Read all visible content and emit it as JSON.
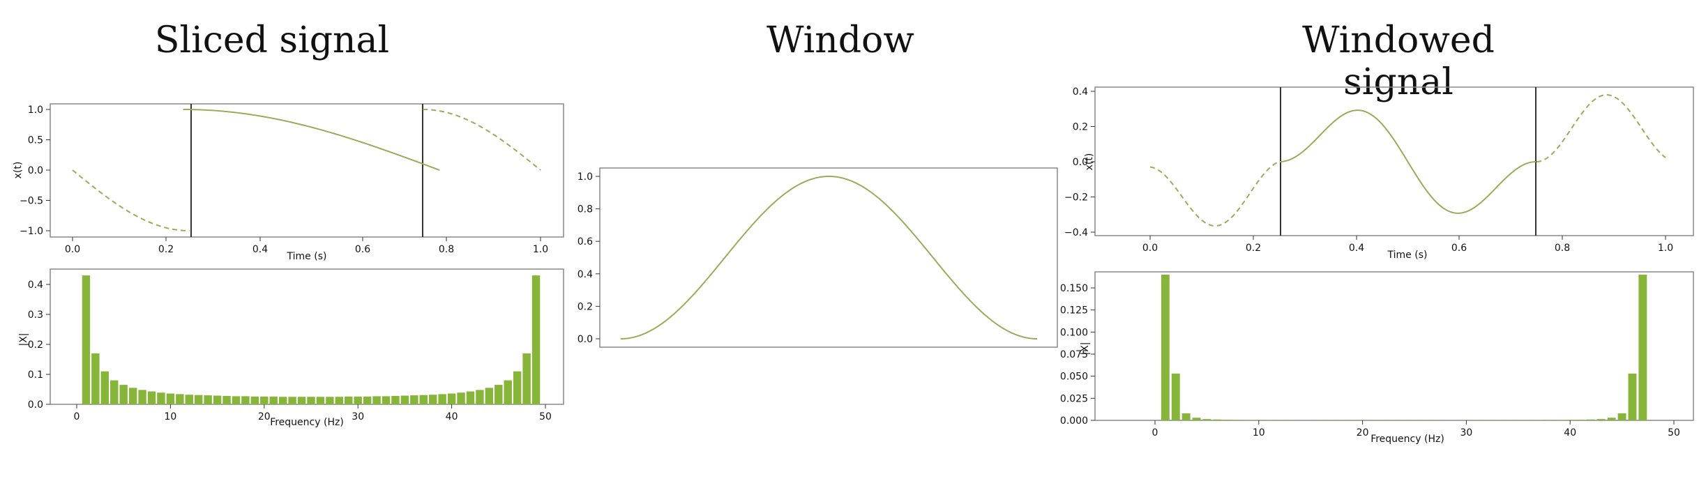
{
  "titles": {
    "sliced": "Sliced signal",
    "window": "Window",
    "windowed": "Windowed signal"
  },
  "colors": {
    "line": "#9aab5a",
    "bar": "#86b53a",
    "slice_line": "#333333",
    "frame": "#888888"
  },
  "chart_data": [
    {
      "id": "sliced-time",
      "type": "line",
      "xlabel": "Time (s)",
      "ylabel": "x(t)",
      "segments": [
        {
          "name": "left",
          "x": [
            0.0,
            0.25
          ],
          "ylim": [
            -1.08,
            1.08
          ],
          "xlim": [
            -0.05,
            0.25
          ],
          "xticks": [
            0.0,
            0.2
          ],
          "xticklabels": [
            "0.0",
            "0.2"
          ],
          "func": "cos_left",
          "style": "dashed"
        },
        {
          "name": "middle",
          "x": [
            0.25,
            0.75
          ],
          "xticks": [
            0.4,
            0.6
          ],
          "xticklabels": [
            "0.4",
            "0.6"
          ],
          "func": "cos",
          "style": "solid"
        },
        {
          "name": "right",
          "x": [
            0.75,
            1.0
          ],
          "xticks": [
            0.8,
            1.0
          ],
          "xticklabels": [
            "0.8",
            "1.0"
          ],
          "func": "cos_right",
          "style": "dashed"
        }
      ],
      "yticks": [
        1.0,
        0.5,
        0.0,
        -0.5,
        -1.0
      ],
      "yticklabels": [
        "1.0",
        "0.5",
        "0.0",
        "−0.5",
        "−1.0"
      ]
    },
    {
      "id": "sliced-spectrum",
      "type": "bar",
      "xlabel": "Frequency (Hz)",
      "ylabel": "|X|",
      "x": [
        1,
        2,
        3,
        4,
        5,
        6,
        7,
        8,
        9,
        10,
        11,
        12,
        13,
        14,
        15,
        16,
        17,
        18,
        19,
        20,
        21,
        22,
        23,
        24,
        25,
        26,
        27,
        28,
        29,
        30,
        31,
        32,
        33,
        34,
        35,
        36,
        37,
        38,
        39,
        40,
        41,
        42,
        43,
        44,
        45,
        46,
        47,
        48,
        49
      ],
      "values": [
        0.43,
        0.17,
        0.11,
        0.08,
        0.065,
        0.055,
        0.048,
        0.043,
        0.039,
        0.036,
        0.034,
        0.032,
        0.031,
        0.03,
        0.029,
        0.028,
        0.027,
        0.027,
        0.026,
        0.026,
        0.026,
        0.025,
        0.025,
        0.025,
        0.025,
        0.025,
        0.025,
        0.025,
        0.026,
        0.026,
        0.026,
        0.027,
        0.027,
        0.028,
        0.029,
        0.03,
        0.031,
        0.032,
        0.034,
        0.036,
        0.039,
        0.043,
        0.048,
        0.055,
        0.065,
        0.08,
        0.11,
        0.17,
        0.43
      ],
      "xticks": [
        0,
        10,
        20,
        30,
        40,
        50
      ],
      "yticks": [
        0.4,
        0.3,
        0.2,
        0.1,
        0.0
      ],
      "yticklabels": [
        "0.4",
        "0.3",
        "0.2",
        "0.1",
        "0.0"
      ],
      "xlim": [
        -3,
        51
      ],
      "ylim": [
        0,
        0.45
      ]
    },
    {
      "id": "window",
      "type": "line",
      "xlabel": "",
      "ylabel": "",
      "yticks": [
        1.0,
        0.8,
        0.6,
        0.4,
        0.2,
        0.0
      ],
      "yticklabels": [
        "1.0",
        "0.8",
        "0.6",
        "0.4",
        "0.2",
        "0.0"
      ],
      "ylim": [
        -0.05,
        1.05
      ],
      "func": "hann"
    },
    {
      "id": "windowed-time",
      "type": "line",
      "xlabel": "Time (s)",
      "ylabel": "x(t)",
      "yticks": [
        0.4,
        0.2,
        0.0,
        -0.2,
        -0.4
      ],
      "yticklabels": [
        "0.4",
        "0.2",
        "0.0",
        "−0.2",
        "−0.4"
      ],
      "ylim": [
        -0.42,
        0.42
      ],
      "segments": [
        {
          "name": "left",
          "xticks": [
            0.0,
            0.2
          ],
          "xticklabels": [
            "0.0",
            "0.2"
          ],
          "style": "dashed"
        },
        {
          "name": "middle",
          "xticks": [
            0.4,
            0.6
          ],
          "xticklabels": [
            "0.4",
            "0.6"
          ],
          "style": "solid"
        },
        {
          "name": "right",
          "xticks": [
            0.8,
            1.0
          ],
          "xticklabels": [
            "0.8",
            "1.0"
          ],
          "style": "dashed"
        }
      ]
    },
    {
      "id": "windowed-spectrum",
      "type": "bar",
      "xlabel": "Frequency (Hz)",
      "ylabel": "|X|",
      "x": [
        1,
        2,
        3,
        4,
        5,
        6,
        7,
        8,
        9,
        10,
        11,
        12,
        13,
        14,
        15,
        16,
        17,
        18,
        19,
        20,
        21,
        22,
        23,
        24,
        25,
        26,
        27,
        28,
        29,
        30,
        31,
        32,
        33,
        34,
        35,
        36,
        37,
        38,
        39,
        40,
        41,
        42,
        43,
        44,
        45,
        46,
        47,
        48,
        49
      ],
      "values": [
        0.165,
        0.053,
        0.008,
        0.003,
        0.0015,
        0.001,
        0.0007,
        0.0005,
        0.0004,
        0.0003,
        0.0003,
        0.0002,
        0.0002,
        0.0002,
        0.0002,
        0.0002,
        0.0002,
        0.0002,
        0.0002,
        0.0002,
        0.0002,
        0.0002,
        0.0002,
        0.0002,
        0.0002,
        0.0002,
        0.0002,
        0.0002,
        0.0002,
        0.0002,
        0.0002,
        0.0002,
        0.0002,
        0.0002,
        0.0002,
        0.0002,
        0.0003,
        0.0003,
        0.0004,
        0.0005,
        0.0007,
        0.001,
        0.0015,
        0.003,
        0.008,
        0.053,
        0.165,
        0.0,
        0.0
      ],
      "xticks": [
        0,
        10,
        20,
        30,
        40,
        50
      ],
      "yticks": [
        0.15,
        0.125,
        0.1,
        0.075,
        0.05,
        0.025,
        0.0
      ],
      "yticklabels": [
        "0.150",
        "0.125",
        "0.100",
        "0.075",
        "0.050",
        "0.025",
        "0.000"
      ],
      "xlim": [
        -5,
        52
      ],
      "ylim": [
        0,
        0.17
      ]
    }
  ]
}
